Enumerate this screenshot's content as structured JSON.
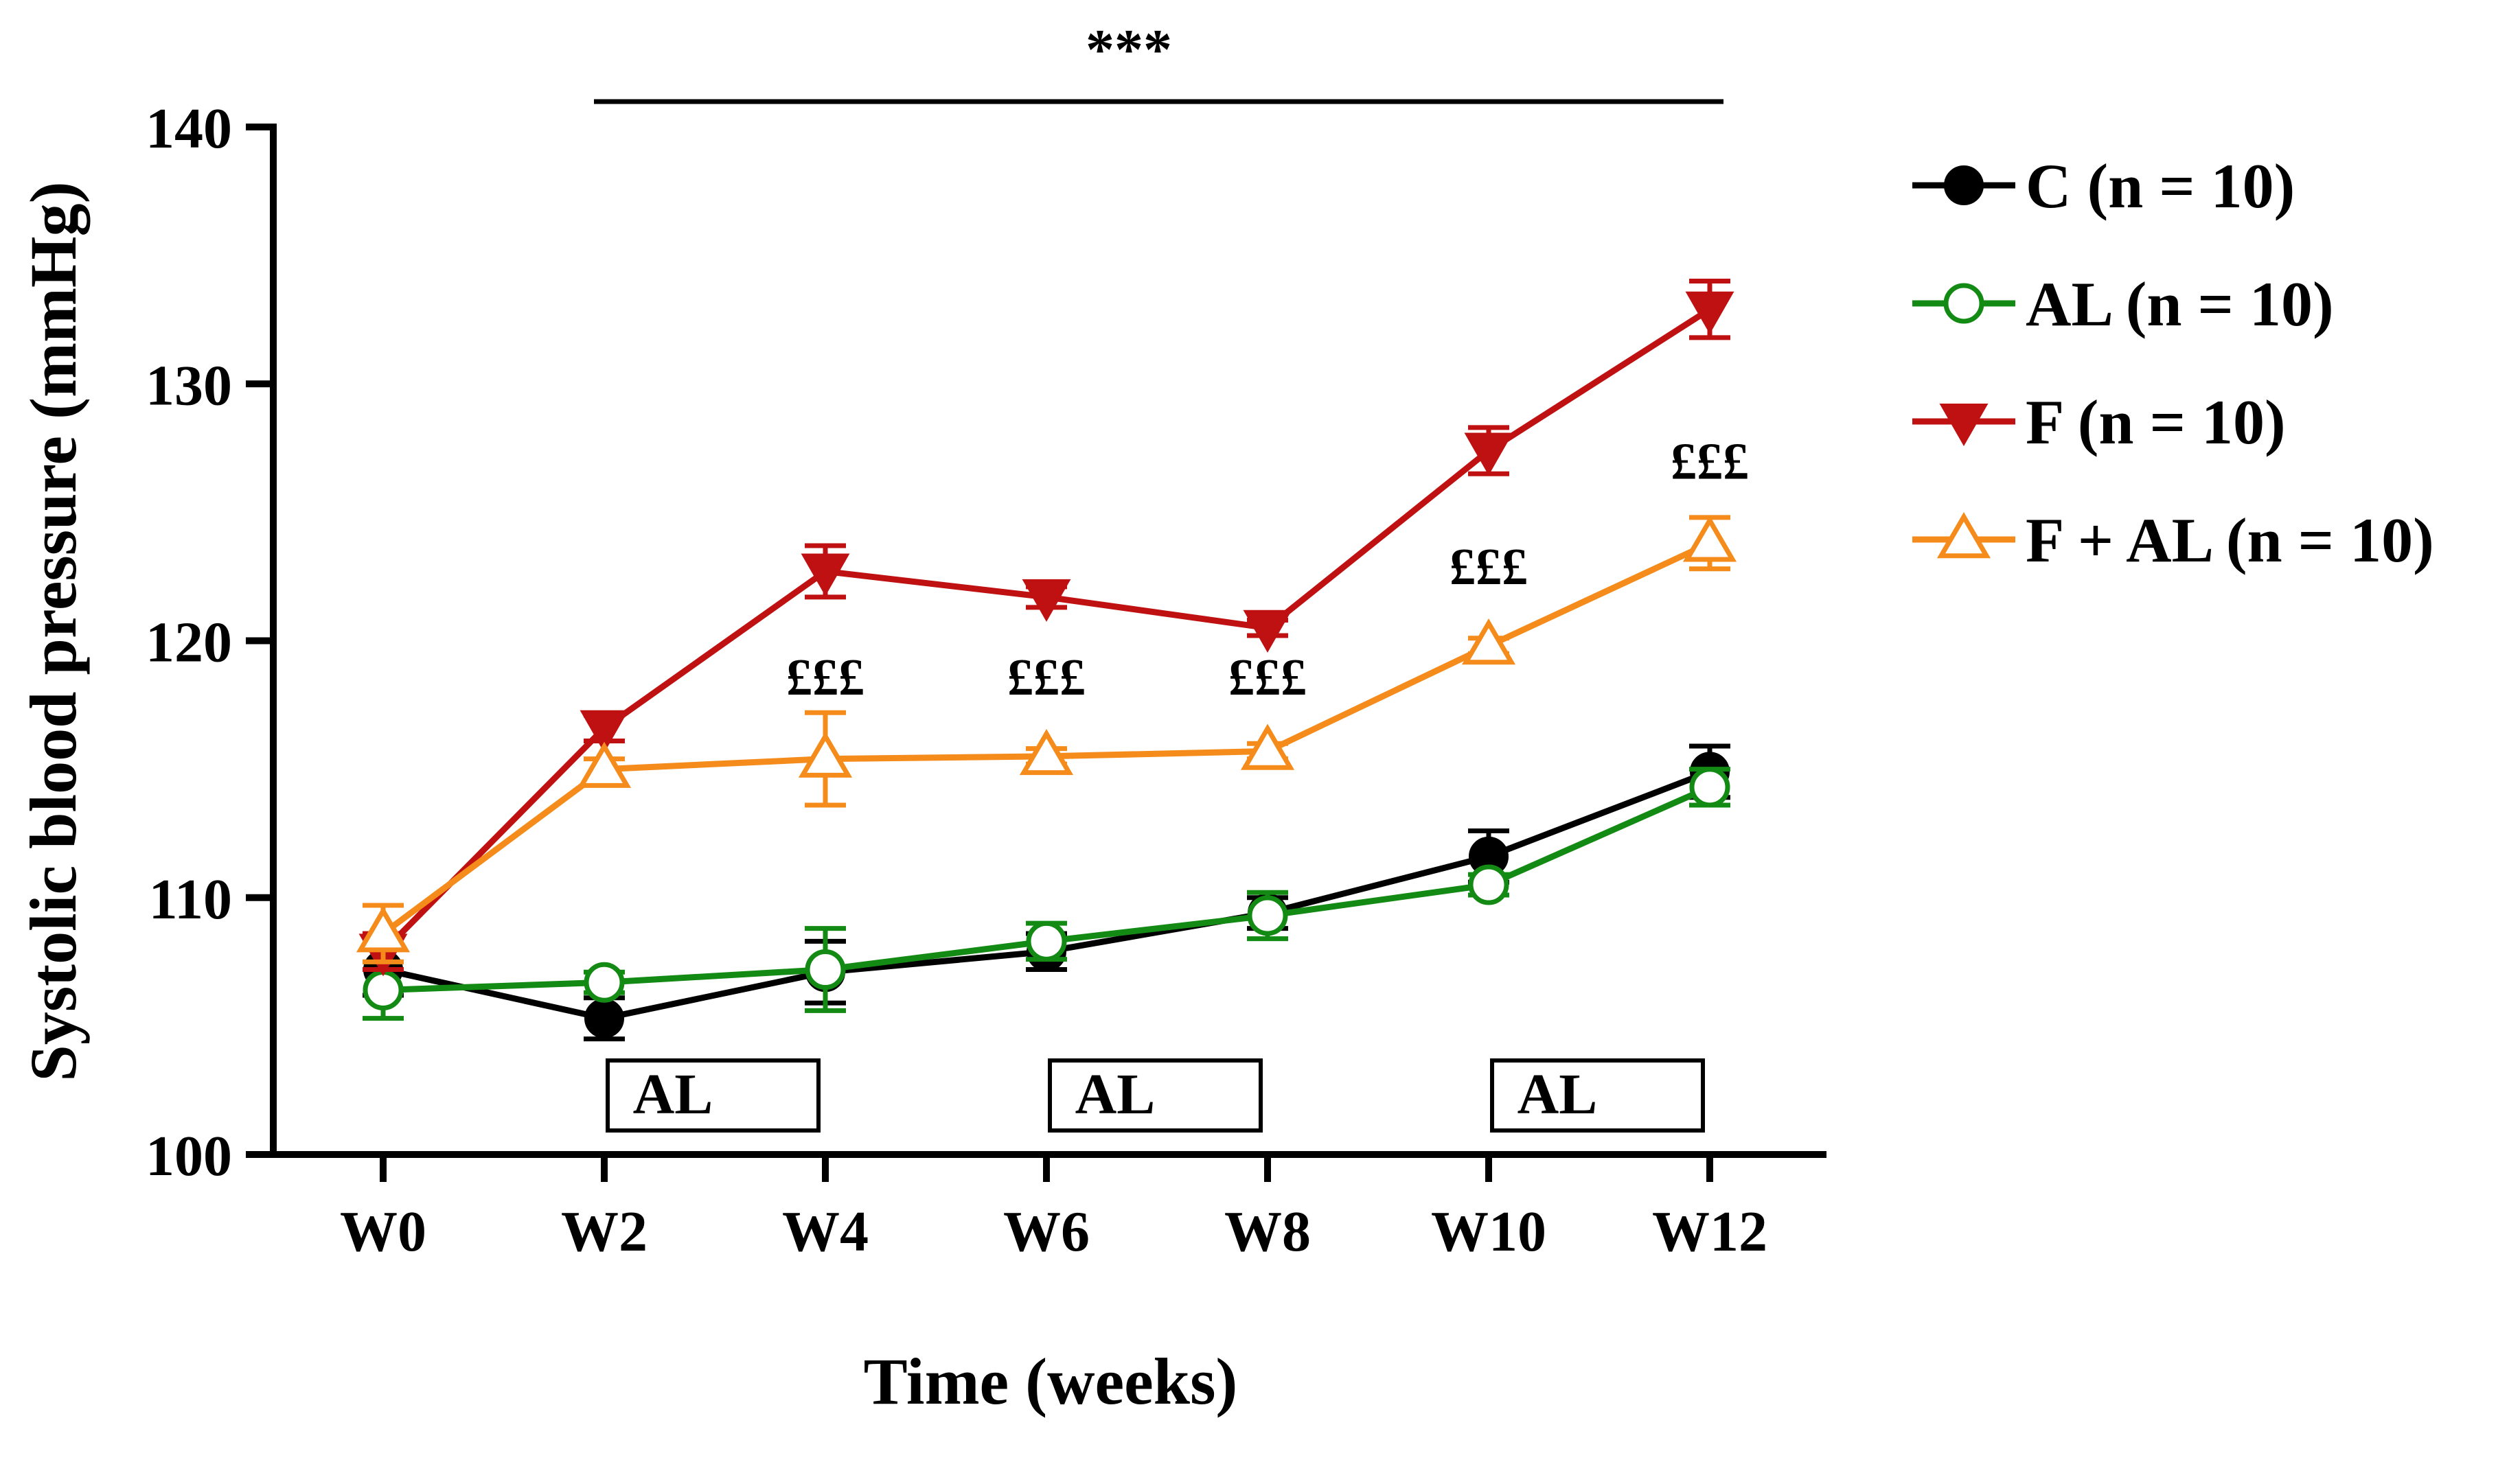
{
  "chart_data": {
    "type": "line",
    "title": "",
    "xlabel": "Time (weeks)",
    "ylabel": "Systolic blood pressure (mmHg)",
    "ylim": [
      100,
      140
    ],
    "yticks": [
      100,
      110,
      120,
      130,
      140
    ],
    "categories": [
      "W0",
      "W2",
      "W4",
      "W6",
      "W8",
      "W10",
      "W12"
    ],
    "grid": false,
    "legend_position": "right",
    "series": [
      {
        "name": "C (n = 10)",
        "color": "#000000",
        "marker": "filled-circle",
        "values": [
          107.2,
          105.3,
          107.1,
          107.9,
          109.4,
          111.6,
          114.9
        ],
        "errors": [
          1.0,
          0.8,
          1.2,
          0.7,
          0.6,
          1.0,
          1.0
        ]
      },
      {
        "name": "AL (n = 10)",
        "color": "#138a13",
        "marker": "open-circle",
        "values": [
          106.4,
          106.7,
          107.2,
          108.3,
          109.3,
          110.5,
          114.3
        ],
        "errors": [
          1.1,
          0.4,
          1.6,
          0.7,
          0.9,
          0.4,
          0.7
        ]
      },
      {
        "name": "F (n = 10)",
        "color": "#bf1111",
        "marker": "filled-triangle-down",
        "values": [
          107.9,
          116.6,
          122.7,
          121.7,
          120.5,
          127.4,
          132.9
        ],
        "errors": [
          0.7,
          0.5,
          1.0,
          0.4,
          0.3,
          0.9,
          1.1
        ]
      },
      {
        "name": "F + AL (n = 10)",
        "color": "#f58b1a",
        "marker": "open-triangle-up",
        "values": [
          108.6,
          115.0,
          115.4,
          115.5,
          115.7,
          119.8,
          123.8
        ],
        "errors": [
          1.1,
          0.4,
          1.8,
          0.3,
          0.3,
          0.3,
          1.0
        ]
      }
    ],
    "annotations": {
      "significance": {
        "label": "***",
        "from_category": "W2",
        "to_category": "W12"
      },
      "markers": [
        {
          "label": "£££",
          "category": "W4",
          "y": 117.9
        },
        {
          "label": "£££",
          "category": "W6",
          "y": 117.9
        },
        {
          "label": "£££",
          "category": "W8",
          "y": 117.9
        },
        {
          "label": "£££",
          "category": "W10",
          "y": 122.2
        },
        {
          "label": "£££",
          "category": "W12",
          "y": 126.3
        }
      ],
      "treatment_boxes": [
        {
          "label": "AL",
          "from_category": "W2",
          "to_category": "W4"
        },
        {
          "label": "AL",
          "from_category": "W6",
          "to_category": "W8"
        },
        {
          "label": "AL",
          "from_category": "W10",
          "to_category": "W12"
        }
      ]
    }
  }
}
